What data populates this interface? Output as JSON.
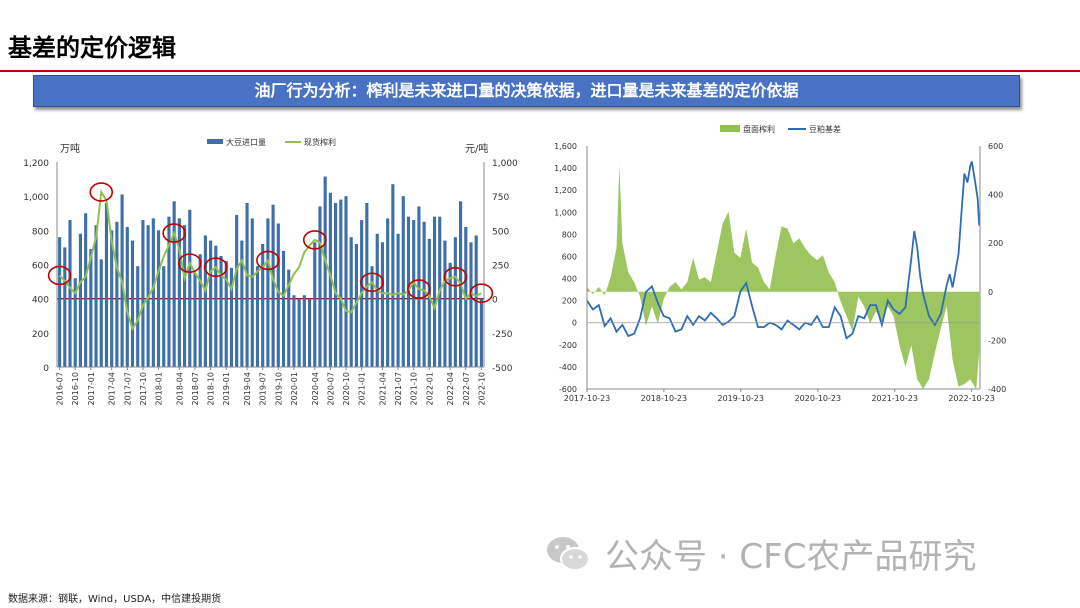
{
  "page": {
    "title": "基差的定价逻辑",
    "banner": "油厂行为分析：榨利是未来进口量的决策依据，进口量是未来基差的定价依据",
    "source": "数据来源：钢联，Wind，USDA，中信建投期货",
    "watermark": "公众号 · CFC农产品研究",
    "colors": {
      "accent_red": "#c00000",
      "banner_blue": "#4a72c4",
      "bar_blue": "#3f6fa8",
      "line_green": "#92c050",
      "basis_blue": "#2e6db4"
    }
  },
  "chart_data": [
    {
      "type": "bar",
      "left_unit": "万吨",
      "right_unit": "元/吨",
      "y_left_ticks": [
        "0",
        "200",
        "400",
        "600",
        "800",
        "1,000",
        "1,200"
      ],
      "y_right_ticks": [
        "-500",
        "-250",
        "0",
        "250",
        "500",
        "750",
        "1,000"
      ],
      "ylim_left": [
        0,
        1200
      ],
      "ylim_right": [
        -500,
        1000
      ],
      "x_tick_labels": [
        "2016-07",
        "2016-10",
        "2017-01",
        "2017-04",
        "2017-07",
        "2017-10",
        "2018-01",
        "2018-04",
        "2018-07",
        "2018-10",
        "2019-01",
        "2019-04",
        "2019-07",
        "2019-10",
        "2020-01",
        "2020-04",
        "2020-07",
        "2020-10",
        "2021-01",
        "2021-04",
        "2021-07",
        "2021-10",
        "2022-01",
        "2022-04",
        "2022-07",
        "2022-10"
      ],
      "legend_position": "top-center",
      "series": [
        {
          "name": "大豆进口量",
          "kind": "bar",
          "axis": "left",
          "values": [
            760,
            700,
            860,
            520,
            780,
            900,
            690,
            830,
            630,
            960,
            800,
            850,
            1010,
            820,
            740,
            590,
            860,
            830,
            870,
            800,
            590,
            880,
            970,
            870,
            830,
            920,
            550,
            660,
            770,
            740,
            710,
            650,
            620,
            580,
            890,
            740,
            960,
            870,
            590,
            720,
            870,
            950,
            840,
            680,
            570,
            420,
            400,
            420,
            400,
            730,
            940,
            1115,
            1020,
            960,
            980,
            1000,
            760,
            720,
            860,
            960,
            590,
            780,
            730,
            870,
            1070,
            780,
            1000,
            880,
            860,
            940,
            850,
            750,
            880,
            880,
            740,
            610,
            760,
            970,
            820,
            730,
            770,
            400
          ]
        },
        {
          "name": "现货榨利",
          "kind": "line",
          "axis": "right",
          "values": [
            170,
            130,
            80,
            40,
            120,
            160,
            300,
            450,
            780,
            720,
            420,
            230,
            120,
            -100,
            -220,
            -160,
            -50,
            10,
            80,
            200,
            310,
            390,
            480,
            360,
            150,
            260,
            190,
            130,
            60,
            200,
            230,
            170,
            140,
            70,
            220,
            280,
            170,
            160,
            200,
            230,
            280,
            140,
            50,
            20,
            100,
            180,
            230,
            340,
            390,
            430,
            410,
            280,
            170,
            40,
            0,
            -90,
            -100,
            -30,
            40,
            90,
            120,
            60,
            40,
            40,
            30,
            40,
            30,
            60,
            120,
            70,
            60,
            20,
            -70,
            60,
            130,
            150,
            160,
            110,
            0,
            40,
            20,
            40
          ]
        }
      ],
      "highlight_categories": [
        "2016-07",
        "2017-04",
        "2018-04",
        "2018-07",
        "2019-01",
        "2019-07",
        "2020-04",
        "2021-01",
        "2022-01",
        "2022-04",
        "2022-10"
      ]
    },
    {
      "type": "line",
      "x_tick_labels": [
        "2017-10-23",
        "2018-10-23",
        "2019-10-23",
        "2020-10-23",
        "2021-10-23",
        "2022-10-23"
      ],
      "y_left_ticks": [
        "-600",
        "-400",
        "-200",
        "0",
        "200",
        "400",
        "600",
        "800",
        "1,000",
        "1,200",
        "1,400",
        "1,600"
      ],
      "y_right_ticks": [
        "-400",
        "-200",
        "0",
        "200",
        "400",
        "600"
      ],
      "ylim_left": [
        -600,
        1600
      ],
      "ylim_right": [
        -400,
        600
      ],
      "legend_position": "top-center",
      "series": [
        {
          "name": "盘面榨利",
          "kind": "area",
          "axis": "right",
          "points": [
            [
              "2017-10-23",
              20
            ],
            [
              "2017-11-20",
              -10
            ],
            [
              "2017-12-18",
              20
            ],
            [
              "2018-01-15",
              -15
            ],
            [
              "2018-02-12",
              60
            ],
            [
              "2018-03-12",
              180
            ],
            [
              "2018-03-26",
              520
            ],
            [
              "2018-04-09",
              200
            ],
            [
              "2018-05-07",
              80
            ],
            [
              "2018-06-04",
              40
            ],
            [
              "2018-07-02",
              -20
            ],
            [
              "2018-07-30",
              -140
            ],
            [
              "2018-08-27",
              -60
            ],
            [
              "2018-09-24",
              -130
            ],
            [
              "2018-10-22",
              -30
            ],
            [
              "2018-11-19",
              20
            ],
            [
              "2018-12-17",
              40
            ],
            [
              "2019-01-14",
              10
            ],
            [
              "2019-02-11",
              40
            ],
            [
              "2019-03-11",
              140
            ],
            [
              "2019-04-08",
              50
            ],
            [
              "2019-05-06",
              60
            ],
            [
              "2019-06-03",
              40
            ],
            [
              "2019-07-01",
              160
            ],
            [
              "2019-07-29",
              280
            ],
            [
              "2019-08-26",
              330
            ],
            [
              "2019-09-23",
              160
            ],
            [
              "2019-10-21",
              140
            ],
            [
              "2019-11-18",
              260
            ],
            [
              "2019-12-16",
              120
            ],
            [
              "2020-01-13",
              100
            ],
            [
              "2020-02-10",
              40
            ],
            [
              "2020-03-09",
              10
            ],
            [
              "2020-04-06",
              150
            ],
            [
              "2020-05-04",
              270
            ],
            [
              "2020-06-01",
              260
            ],
            [
              "2020-06-29",
              200
            ],
            [
              "2020-07-27",
              220
            ],
            [
              "2020-08-24",
              180
            ],
            [
              "2020-09-21",
              150
            ],
            [
              "2020-10-19",
              130
            ],
            [
              "2020-11-16",
              150
            ],
            [
              "2020-12-14",
              80
            ],
            [
              "2021-01-11",
              40
            ],
            [
              "2021-02-08",
              -40
            ],
            [
              "2021-03-08",
              -100
            ],
            [
              "2021-04-05",
              -160
            ],
            [
              "2021-05-03",
              -20
            ],
            [
              "2021-05-31",
              -60
            ],
            [
              "2021-06-28",
              -130
            ],
            [
              "2021-07-26",
              -80
            ],
            [
              "2021-08-23",
              -120
            ],
            [
              "2021-09-20",
              -60
            ],
            [
              "2021-10-18",
              -100
            ],
            [
              "2021-11-15",
              -220
            ],
            [
              "2021-12-13",
              -310
            ],
            [
              "2022-01-10",
              -220
            ],
            [
              "2022-02-07",
              -360
            ],
            [
              "2022-03-07",
              -400
            ],
            [
              "2022-04-04",
              -360
            ],
            [
              "2022-05-02",
              -250
            ],
            [
              "2022-05-30",
              -150
            ],
            [
              "2022-06-27",
              -60
            ],
            [
              "2022-07-25",
              -280
            ],
            [
              "2022-08-22",
              -390
            ],
            [
              "2022-09-19",
              -380
            ],
            [
              "2022-10-17",
              -360
            ],
            [
              "2022-11-14",
              -400
            ],
            [
              "2022-11-28",
              -250
            ]
          ]
        },
        {
          "name": "豆粕基差",
          "kind": "line",
          "axis": "left",
          "points": [
            [
              "2017-10-23",
              200
            ],
            [
              "2017-11-20",
              120
            ],
            [
              "2017-12-18",
              160
            ],
            [
              "2018-01-15",
              -30
            ],
            [
              "2018-02-12",
              40
            ],
            [
              "2018-03-12",
              -80
            ],
            [
              "2018-04-09",
              -20
            ],
            [
              "2018-05-07",
              -120
            ],
            [
              "2018-06-04",
              -100
            ],
            [
              "2018-07-02",
              40
            ],
            [
              "2018-07-30",
              280
            ],
            [
              "2018-08-27",
              330
            ],
            [
              "2018-09-24",
              180
            ],
            [
              "2018-10-22",
              60
            ],
            [
              "2018-11-19",
              40
            ],
            [
              "2018-12-17",
              -80
            ],
            [
              "2019-01-14",
              -60
            ],
            [
              "2019-02-11",
              60
            ],
            [
              "2019-03-11",
              -20
            ],
            [
              "2019-04-08",
              60
            ],
            [
              "2019-05-06",
              20
            ],
            [
              "2019-06-03",
              90
            ],
            [
              "2019-07-01",
              40
            ],
            [
              "2019-07-29",
              -20
            ],
            [
              "2019-08-26",
              10
            ],
            [
              "2019-09-23",
              60
            ],
            [
              "2019-10-21",
              280
            ],
            [
              "2019-11-18",
              360
            ],
            [
              "2019-12-16",
              150
            ],
            [
              "2020-01-13",
              -40
            ],
            [
              "2020-02-10",
              -40
            ],
            [
              "2020-03-09",
              0
            ],
            [
              "2020-04-06",
              -20
            ],
            [
              "2020-05-04",
              -60
            ],
            [
              "2020-06-01",
              20
            ],
            [
              "2020-06-29",
              -20
            ],
            [
              "2020-07-27",
              -60
            ],
            [
              "2020-08-24",
              0
            ],
            [
              "2020-09-21",
              -20
            ],
            [
              "2020-10-19",
              60
            ],
            [
              "2020-11-16",
              -40
            ],
            [
              "2020-12-14",
              -40
            ],
            [
              "2021-01-11",
              140
            ],
            [
              "2021-02-08",
              60
            ],
            [
              "2021-03-08",
              -140
            ],
            [
              "2021-04-05",
              -100
            ],
            [
              "2021-05-03",
              60
            ],
            [
              "2021-05-31",
              40
            ],
            [
              "2021-06-28",
              160
            ],
            [
              "2021-07-26",
              160
            ],
            [
              "2021-08-23",
              -20
            ],
            [
              "2021-09-20",
              200
            ],
            [
              "2021-10-18",
              120
            ],
            [
              "2021-11-15",
              80
            ],
            [
              "2021-12-13",
              140
            ],
            [
              "2022-01-10",
              580
            ],
            [
              "2022-01-24",
              830
            ],
            [
              "2022-02-07",
              680
            ],
            [
              "2022-02-21",
              420
            ],
            [
              "2022-03-07",
              260
            ],
            [
              "2022-04-04",
              60
            ],
            [
              "2022-05-02",
              -20
            ],
            [
              "2022-05-30",
              80
            ],
            [
              "2022-06-27",
              340
            ],
            [
              "2022-07-11",
              440
            ],
            [
              "2022-07-25",
              320
            ],
            [
              "2022-08-22",
              620
            ],
            [
              "2022-09-05",
              1000
            ],
            [
              "2022-09-19",
              1350
            ],
            [
              "2022-10-03",
              1270
            ],
            [
              "2022-10-17",
              1420
            ],
            [
              "2022-10-24",
              1460
            ],
            [
              "2022-11-07",
              1300
            ],
            [
              "2022-11-21",
              1120
            ],
            [
              "2022-11-28",
              880
            ]
          ]
        }
      ]
    }
  ]
}
